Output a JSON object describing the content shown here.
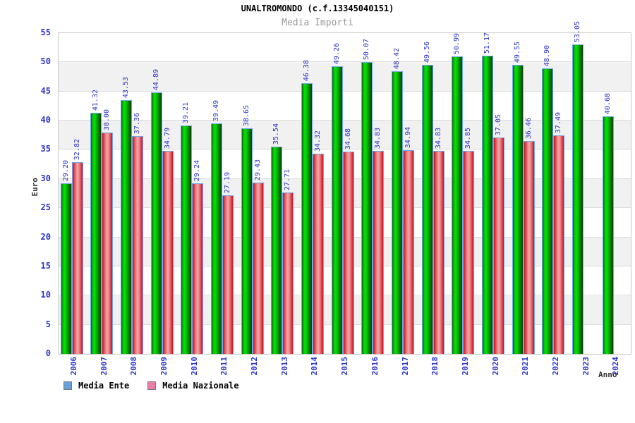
{
  "header": {
    "title": "UNALTROMONDO (c.f.13345040151)",
    "subtitle": "Media Importi"
  },
  "chart_data": {
    "type": "bar",
    "title": "UNALTROMONDO (c.f.13345040151)",
    "subtitle": "Media Importi",
    "xlabel": "Anno",
    "ylabel": "Euro",
    "ylim": [
      0,
      55
    ],
    "ytick_step": 5,
    "grid": "horizontal-bands",
    "legend_position": "bottom-left",
    "categories": [
      "2006",
      "2007",
      "2008",
      "2009",
      "2010",
      "2011",
      "2012",
      "2013",
      "2014",
      "2015",
      "2016",
      "2017",
      "2018",
      "2019",
      "2020",
      "2021",
      "2022",
      "2023",
      "2024"
    ],
    "series": [
      {
        "name": "Media Ente",
        "bar_color": "green",
        "values": [
          29.2,
          41.32,
          43.53,
          44.89,
          39.21,
          39.49,
          38.65,
          35.54,
          46.38,
          49.26,
          50.07,
          48.42,
          49.56,
          50.99,
          51.17,
          49.55,
          48.9,
          53.05,
          40.68
        ]
      },
      {
        "name": "Media Nazionale",
        "bar_color": "red",
        "values": [
          32.82,
          38.0,
          37.36,
          34.79,
          29.24,
          27.19,
          29.43,
          27.71,
          34.32,
          34.68,
          34.83,
          34.94,
          34.83,
          34.85,
          37.05,
          36.46,
          37.49,
          null,
          null
        ]
      }
    ],
    "legend": [
      {
        "label": "Media Ente",
        "color": "#6a9fd8"
      },
      {
        "label": "Media Nazionale",
        "color": "#ea7fa8"
      }
    ],
    "colors": {
      "tick_text": "#2b35c8",
      "value_text": "#2b35c8",
      "band_gray": "#f1f1f1",
      "bar_border": "#6fa8f0",
      "green_bright": "#00e400",
      "red_edge": "#c01527",
      "red_center": "#f0aaaa"
    }
  }
}
